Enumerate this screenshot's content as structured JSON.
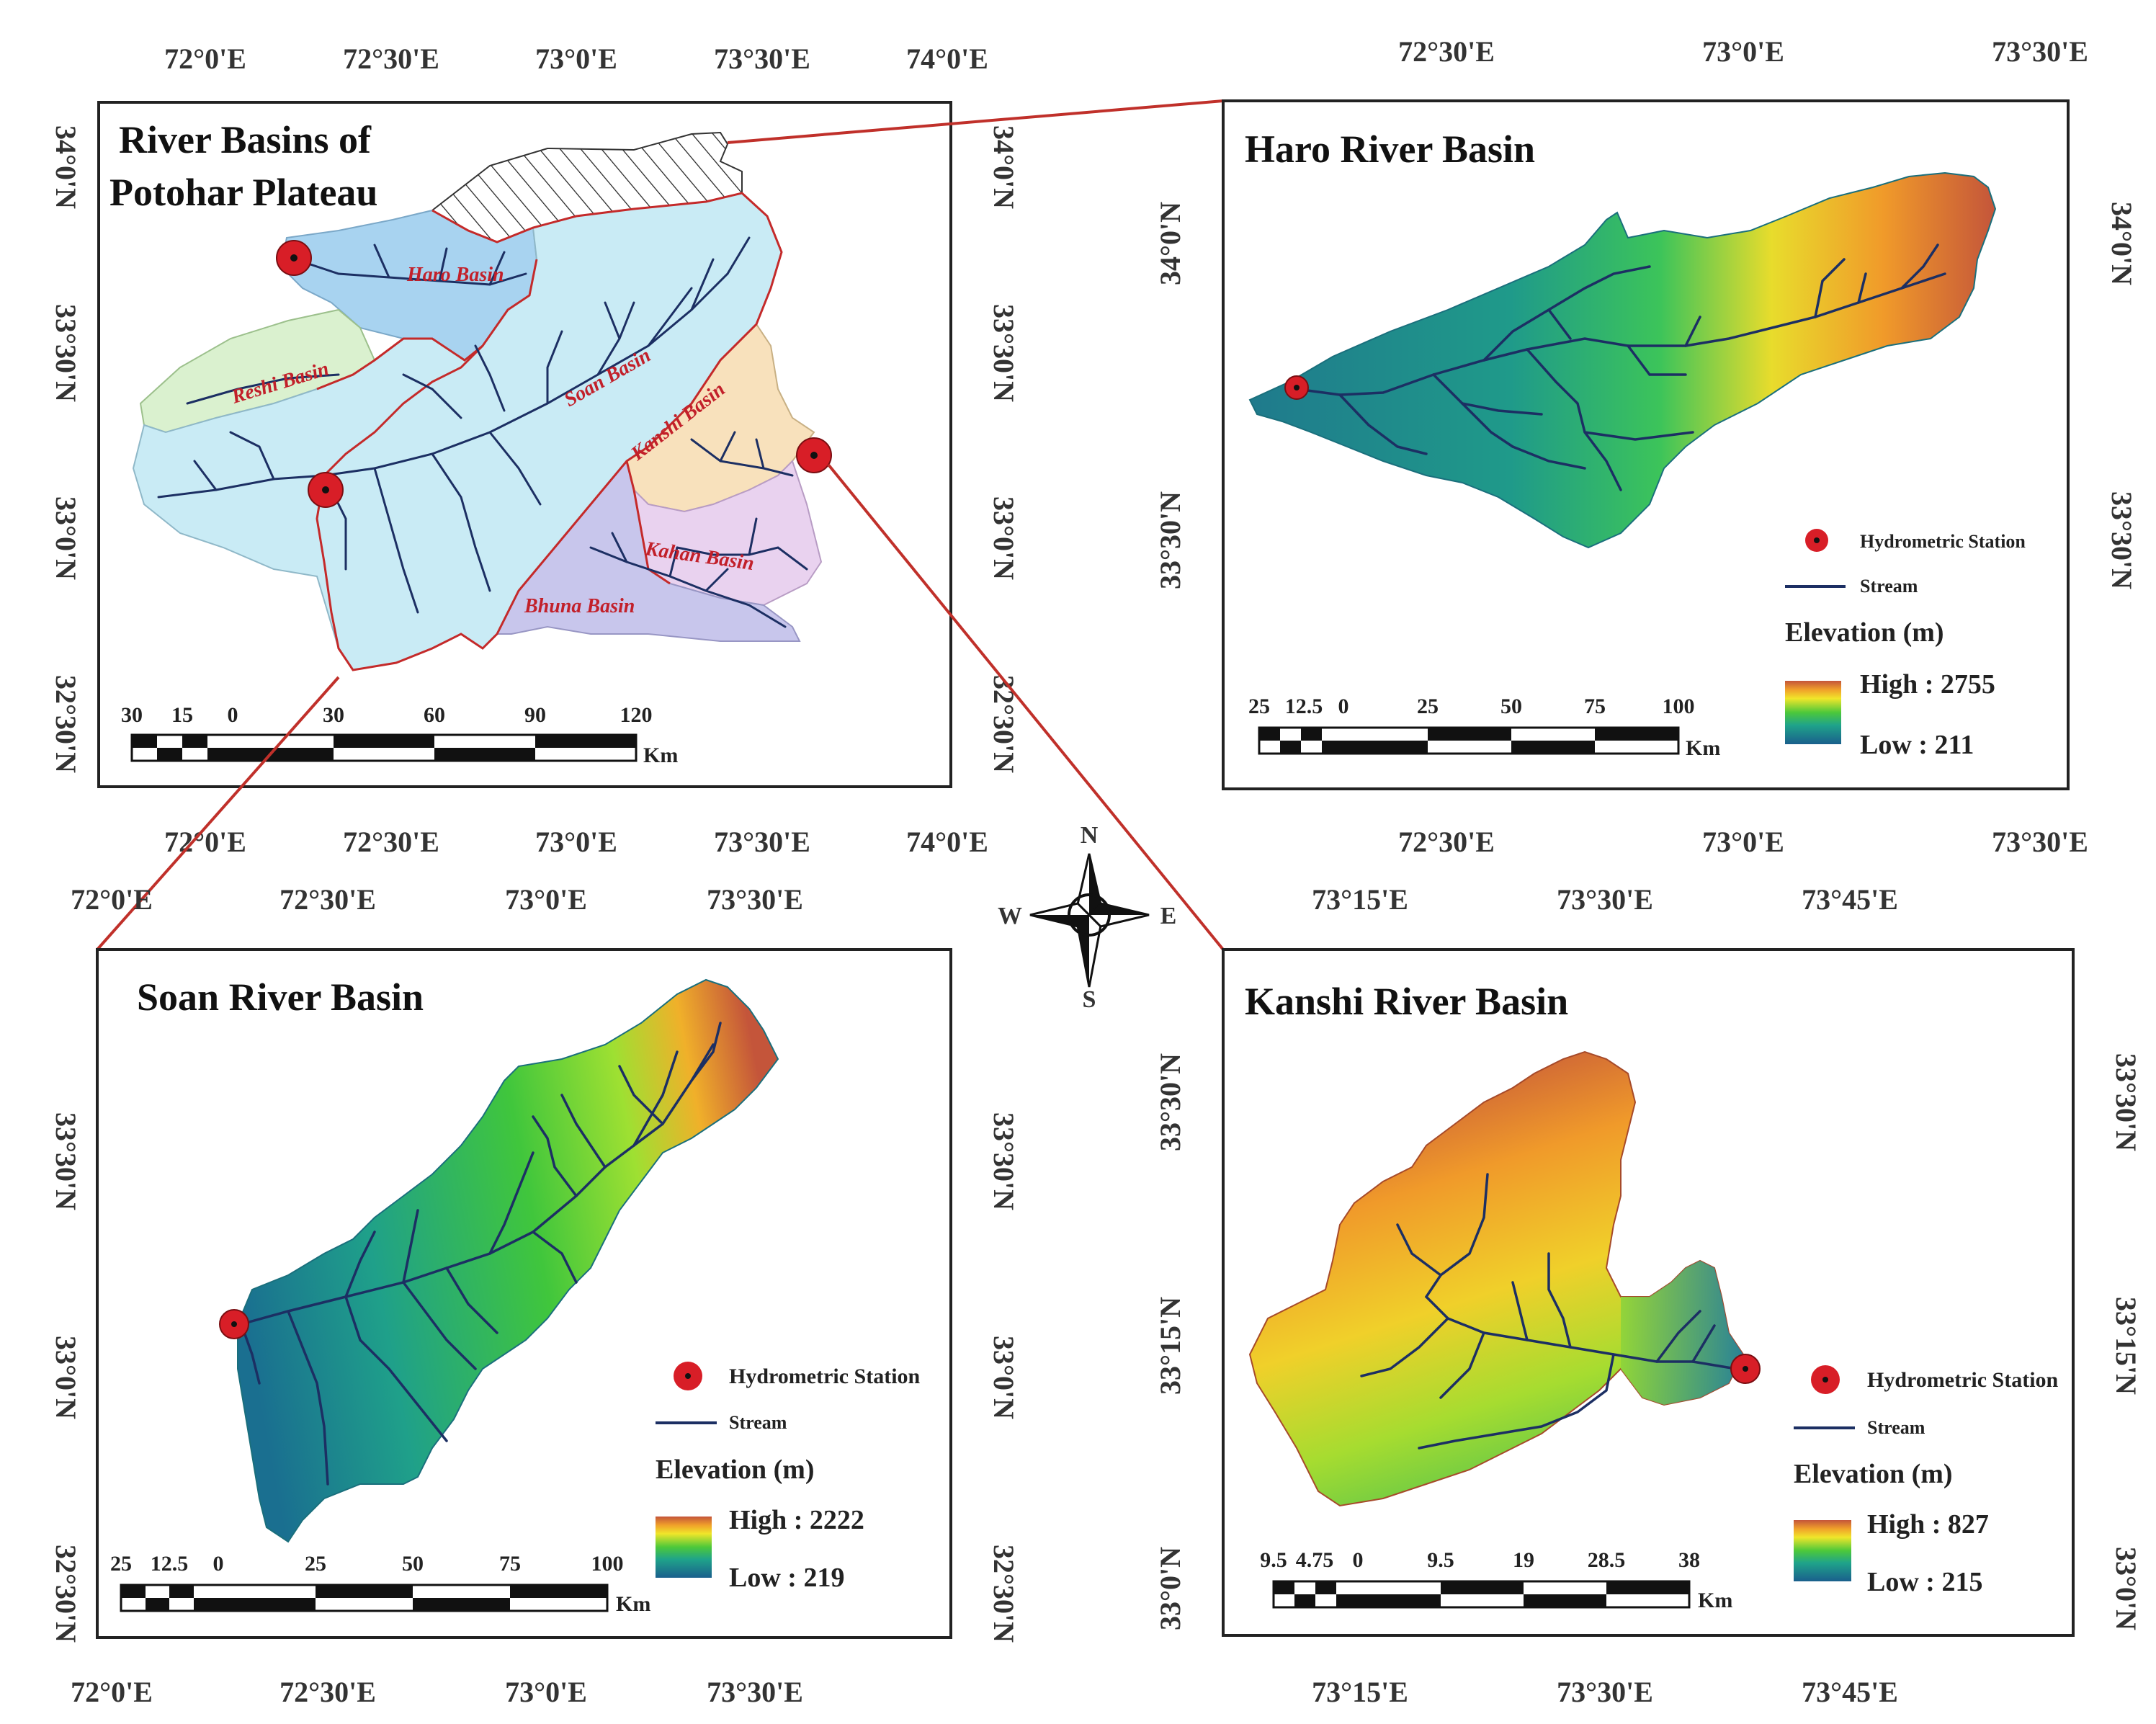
{
  "panels": {
    "overview": {
      "title_line1": "River Basins of",
      "title_line2": "Potohar Plateau",
      "lon_ticks": [
        "72°0'E",
        "72°30'E",
        "73°0'E",
        "73°30'E",
        "74°0'E"
      ],
      "lat_ticks": [
        "34°0'N",
        "33°30'N",
        "33°0'N",
        "32°30'N"
      ],
      "basin_labels": {
        "haro": "Haro Basin",
        "reshi": "Reshi Basin",
        "soan": "Soan Basin",
        "kanshi": "Kanshi Basin",
        "kahan": "Kahan Basin",
        "bhuna": "Bhuna Basin"
      },
      "basin_colors": {
        "haro": "#a8d3f0",
        "reshi": "#daf1cf",
        "soan": "#c9ebf5",
        "kanshi": "#f8e1bc",
        "kahan": "#e9d2ef",
        "bhuna": "#c8c6ec"
      },
      "scale_labels": [
        "30",
        "15",
        "0",
        "30",
        "60",
        "90",
        "120"
      ],
      "scale_unit": "Km"
    },
    "haro": {
      "title": "Haro River Basin",
      "lon_ticks": [
        "72°30'E",
        "73°0'E",
        "73°30'E"
      ],
      "lat_ticks": [
        "34°0'N",
        "33°30'N"
      ],
      "legend": {
        "station": "Hydrometric Station",
        "stream": "Stream",
        "elevation_title": "Elevation (m)",
        "high": "High : 2755",
        "low": "Low : 211"
      },
      "scale_labels": [
        "25",
        "12.5",
        "0",
        "25",
        "50",
        "75",
        "100"
      ],
      "scale_unit": "Km"
    },
    "soan": {
      "title": "Soan River Basin",
      "lon_ticks": [
        "72°0'E",
        "72°30'E",
        "73°0'E",
        "73°30'E"
      ],
      "lat_ticks": [
        "33°30'N",
        "33°0'N",
        "32°30'N"
      ],
      "legend": {
        "station": "Hydrometric Station",
        "stream": "Stream",
        "elevation_title": "Elevation (m)",
        "high": "High : 2222",
        "low": "Low : 219"
      },
      "scale_labels": [
        "25",
        "12.5",
        "0",
        "25",
        "50",
        "75",
        "100"
      ],
      "scale_unit": "Km"
    },
    "kanshi": {
      "title": "Kanshi River Basin",
      "lon_ticks": [
        "73°15'E",
        "73°30'E",
        "73°45'E"
      ],
      "lat_ticks": [
        "33°30'N",
        "33°15'N",
        "33°0'N"
      ],
      "legend": {
        "station": "Hydrometric Station",
        "stream": "Stream",
        "elevation_title": "Elevation (m)",
        "high": "High : 827",
        "low": "Low : 215"
      },
      "scale_labels": [
        "9.5",
        "4.75",
        "0",
        "9.5",
        "19",
        "28.5",
        "38"
      ],
      "scale_unit": "Km"
    }
  },
  "compass": {
    "n": "N",
    "s": "S",
    "e": "E",
    "w": "W"
  },
  "colors": {
    "station": "#d81e27",
    "stream": "#1c2f63",
    "connector": "#c0302a",
    "boundary": "#c42a2a",
    "elev_low": "#1a5f8c",
    "elev_mid": "#3cc23c",
    "elev_high": "#c4553a"
  }
}
